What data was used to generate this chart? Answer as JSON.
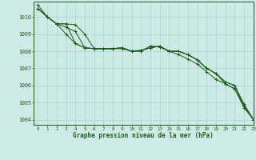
{
  "title": "Graphe pression niveau de la mer (hPa)",
  "bg_color": "#ceeae6",
  "grid_color": "#aad4ce",
  "line_color": "#1a5c1a",
  "xlim": [
    -0.5,
    23
  ],
  "ylim": [
    1003.7,
    1010.9
  ],
  "yticks": [
    1004,
    1005,
    1006,
    1007,
    1008,
    1009,
    1010
  ],
  "xticks": [
    0,
    1,
    2,
    3,
    4,
    5,
    6,
    7,
    8,
    9,
    10,
    11,
    12,
    13,
    14,
    15,
    16,
    17,
    18,
    19,
    20,
    21,
    22,
    23
  ],
  "series1": [
    1010.5,
    1010.0,
    1009.6,
    1009.6,
    1008.45,
    1008.2,
    1008.15,
    1008.15,
    1008.15,
    1008.2,
    1008.0,
    1008.05,
    1008.2,
    1008.3,
    1008.0,
    1008.0,
    1007.8,
    1007.5,
    1007.0,
    1006.7,
    1006.1,
    1005.8,
    1004.8,
    1004.0
  ],
  "series2": [
    1010.5,
    1010.0,
    1009.6,
    1009.4,
    1009.15,
    1008.2,
    1008.15,
    1008.15,
    1008.15,
    1008.2,
    1008.0,
    1008.0,
    1008.3,
    1008.25,
    1008.0,
    1008.0,
    1007.8,
    1007.5,
    1007.0,
    1006.7,
    1006.2,
    1006.0,
    1004.8,
    1004.0
  ],
  "series3": [
    1010.5,
    1010.0,
    1009.6,
    1009.6,
    1009.55,
    1009.0,
    1008.15,
    1008.15,
    1008.15,
    1008.15,
    1008.0,
    1008.0,
    1008.3,
    1008.25,
    1008.0,
    1008.0,
    1007.8,
    1007.5,
    1007.0,
    1006.7,
    1006.2,
    1006.0,
    1004.9,
    1004.0
  ],
  "series4": [
    1010.7,
    1010.0,
    1009.6,
    1009.0,
    1008.45,
    1008.2,
    1008.15,
    1008.15,
    1008.15,
    1008.2,
    1008.0,
    1008.05,
    1008.2,
    1008.3,
    1008.0,
    1007.8,
    1007.55,
    1007.25,
    1006.8,
    1006.35,
    1006.1,
    1005.8,
    1004.7,
    1004.0
  ]
}
